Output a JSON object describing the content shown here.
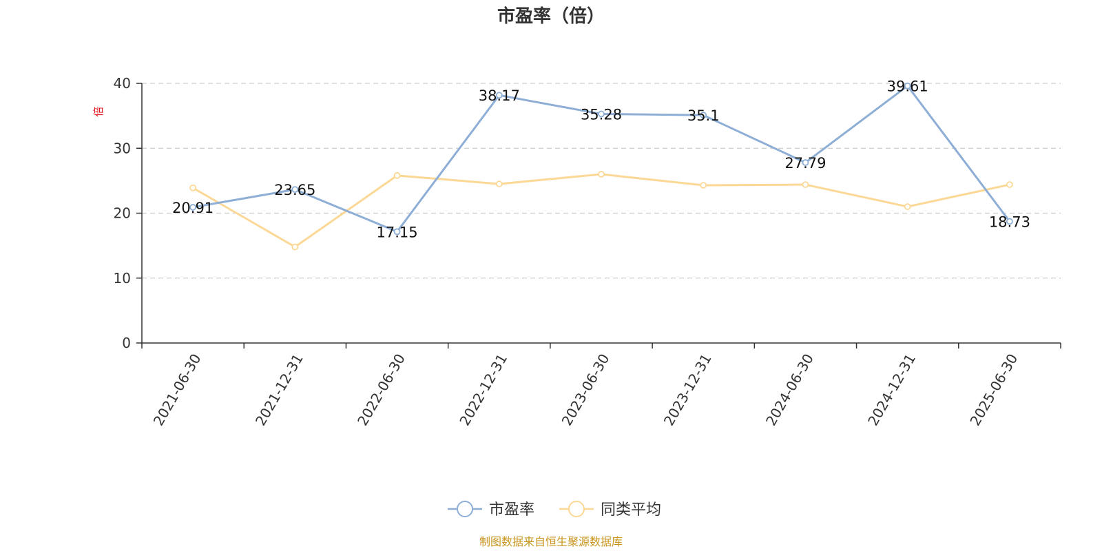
{
  "chart_data": {
    "type": "line",
    "title": "市盈率（倍）",
    "ylabel": "倍",
    "xlabel": "",
    "categories": [
      "2021-06-30",
      "2021-12-31",
      "2022-06-30",
      "2022-12-31",
      "2023-06-30",
      "2023-12-31",
      "2024-06-30",
      "2024-12-31",
      "2025-06-30"
    ],
    "ylim": [
      0,
      40
    ],
    "yticks": [
      0,
      10,
      20,
      30,
      40
    ],
    "grid": true,
    "legend_position": "bottom",
    "series": [
      {
        "name": "市盈率",
        "color": "#8eaed6",
        "values": [
          20.91,
          23.65,
          17.15,
          38.17,
          35.28,
          35.1,
          27.79,
          39.61,
          18.73
        ],
        "labels": [
          "20.91",
          "23.65",
          "17.15",
          "38.17",
          "35.28",
          "35.1",
          "27.79",
          "39.61",
          "18.73"
        ]
      },
      {
        "name": "同类平均",
        "color": "#fbd896",
        "values": [
          23.9,
          14.8,
          25.8,
          24.5,
          26.0,
          24.3,
          24.4,
          21.0,
          24.4
        ]
      }
    ]
  },
  "source": "制图数据来自恒生聚源数据库"
}
